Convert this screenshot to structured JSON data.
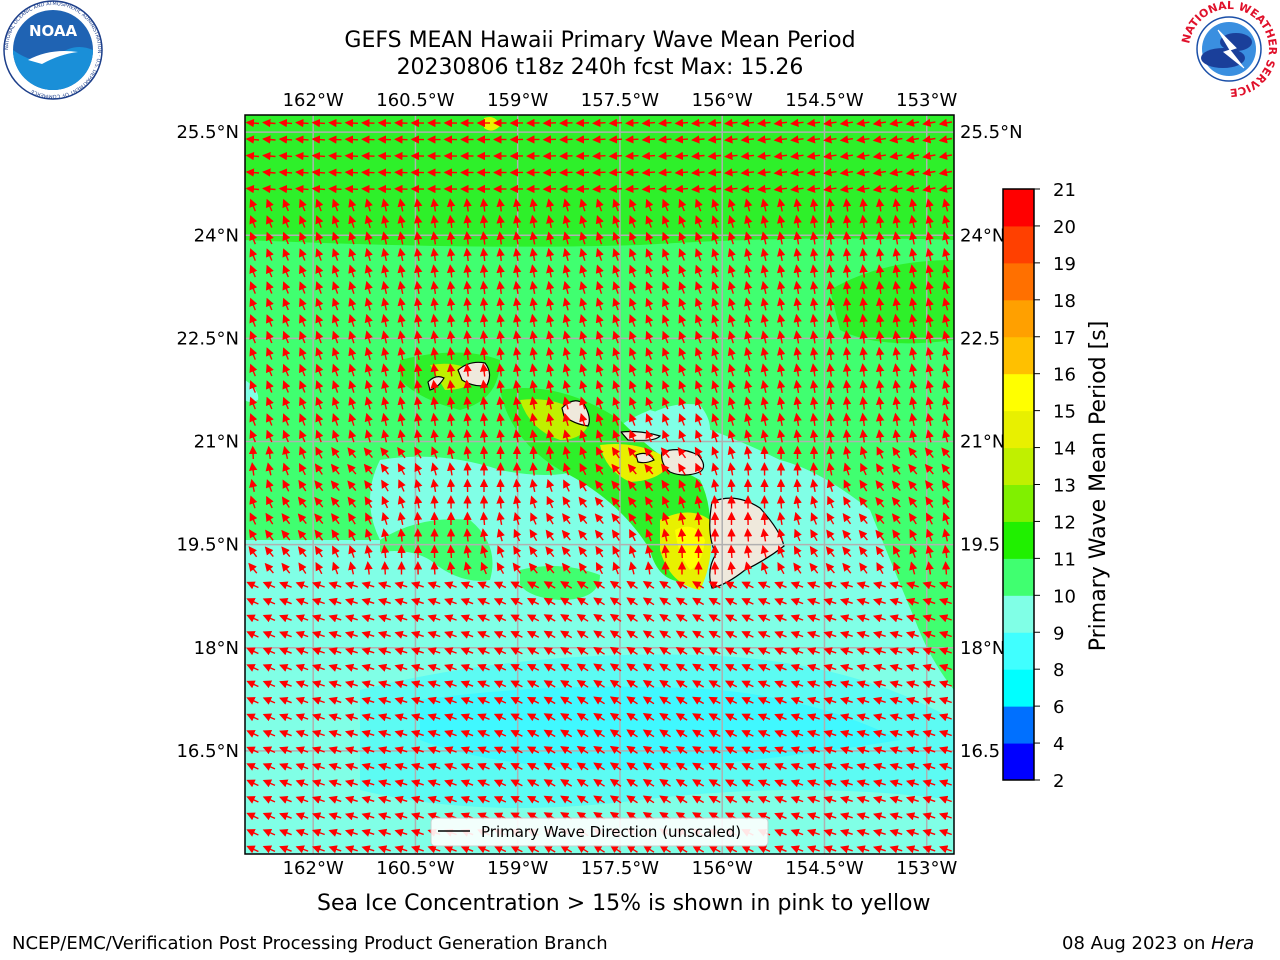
{
  "header": {
    "title_line1": "GEFS MEAN Hawaii Primary Wave Mean Period",
    "title_line2": "20230806 t18z 240h fcst   Max: 15.26"
  },
  "logos": {
    "noaa": {
      "text": "NOAA",
      "ring": "NATIONAL OCEANIC AND ATMOSPHERIC ADMINISTRATION · U.S. DEPARTMENT OF COMMERCE"
    },
    "nws": {
      "ring": "NATIONAL WEATHER SERVICE"
    }
  },
  "map": {
    "lon_ticks": [
      "162°W",
      "160.5°W",
      "159°W",
      "157.5°W",
      "156°W",
      "154.5°W",
      "153°W"
    ],
    "lat_ticks": [
      "25.5°N",
      "24°N",
      "22.5°N",
      "21°N",
      "19.5°N",
      "18°N",
      "16.5°N"
    ],
    "lat_ticks_right": [
      "25.5°N",
      "24°N",
      "22.5",
      "21°N",
      "19.5",
      "18°N",
      "16.5"
    ],
    "extent": {
      "lon_min": -163.0,
      "lon_max": -152.6,
      "lat_min": 15.0,
      "lat_max": 25.75
    },
    "legend_label": "Primary Wave Direction (unscaled)",
    "arrow_color": "#ff0000",
    "land_color": "#efe9dc"
  },
  "colorbar": {
    "label": "Primary Wave Mean Period [s]",
    "ticks": [
      "2",
      "4",
      "6",
      "8",
      "9",
      "10",
      "11",
      "12",
      "13",
      "14",
      "15",
      "16",
      "17",
      "18",
      "19",
      "20",
      "21"
    ],
    "colors": [
      "#0000ff",
      "#0070ff",
      "#00ffff",
      "#40ffff",
      "#80ffe6",
      "#40ff70",
      "#20f000",
      "#80f000",
      "#c0f000",
      "#e8f000",
      "#ffff00",
      "#ffc000",
      "#ffa000",
      "#ff7000",
      "#ff4000",
      "#ff0000"
    ]
  },
  "caption": "Sea Ice Concentration > 15% is shown in pink to yellow",
  "footer": {
    "left": "NCEP/EMC/Verification Post Processing Product Generation Branch",
    "date": "08 Aug 2023 on ",
    "host": "Hera"
  }
}
